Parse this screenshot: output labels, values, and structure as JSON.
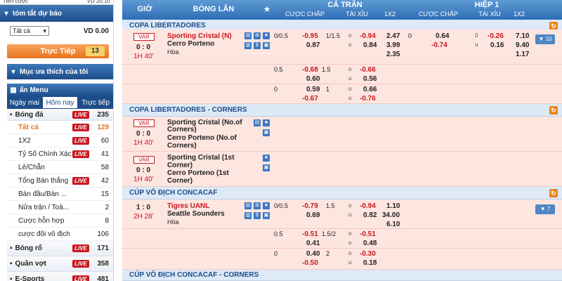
{
  "left": {
    "topline": {
      "label": "Tiền cược",
      "value": "VD 20.10"
    },
    "summary_title": "tóm tắt dự báo",
    "filter_value": "Tất cả",
    "balance": "VD 0.00",
    "live_button": "Trực Tiếp",
    "live_count": "13",
    "favorites": "Mục ưa thích của tôi",
    "hide_menu": "ẩn Menu",
    "tabs": [
      "Ngày mai",
      "Hôm nay",
      "Trực tiếp"
    ],
    "sports": [
      {
        "name": "Bóng đá",
        "live": "LIVE",
        "count": "235"
      },
      {
        "name": "Bóng rổ",
        "live": "LIVE",
        "count": "171"
      },
      {
        "name": "Quần vợt",
        "live": "LIVE",
        "count": "358"
      },
      {
        "name": "E-Sports",
        "live": "LIVE",
        "count": "481"
      }
    ],
    "subs": [
      {
        "name": "Tất cả",
        "live": "LIVE",
        "count": "129"
      },
      {
        "name": "1X2",
        "live": "LIVE",
        "count": "60"
      },
      {
        "name": "Tỷ Số Chính Xác",
        "live": "LIVE",
        "count": "41"
      },
      {
        "name": "Lẻ/Chẵn",
        "live": "",
        "count": "58"
      },
      {
        "name": "Tổng Bàn thắng",
        "live": "LIVE",
        "count": "42"
      },
      {
        "name": "Bàn đầu/Bàn ...",
        "live": "",
        "count": "15"
      },
      {
        "name": "Nửa trận / Toà...",
        "live": "",
        "count": "2"
      },
      {
        "name": "Cược hỗn hợp",
        "live": "",
        "count": "8"
      },
      {
        "name": "cược đôi vô địch",
        "live": "",
        "count": "106"
      }
    ]
  },
  "header": {
    "time": "GIỜ",
    "match": "BÓNG LĂN",
    "full": "CẢ TRẬN",
    "half": "HIỆP 1",
    "handicap": "CƯỢC CHẤP",
    "ou": "TÀI XỈU",
    "x12": "1X2"
  },
  "leagues": [
    "COPA LIBERTADORES",
    "COPA LIBERTADORES - CORNERS",
    "CÚP VÔ ĐỊCH CONCACAF",
    "CÚP VÔ ĐỊCH CONCACAF - CORNERS"
  ],
  "m1": {
    "var": "VAR",
    "score": "0 : 0",
    "time": "1H 40'",
    "home": "Sporting Cristal (N)",
    "away": "Cerro Porteno",
    "draw": "Hòa",
    "more": "▼ 10",
    "r1": {
      "hdp": "0/0.5",
      "h1": "-0.95",
      "h2": "0.87",
      "ou": "1/1.5",
      "o": "o",
      "u": "u",
      "o1": "-0.94",
      "o2": "0.84",
      "x1": "2.47",
      "x2": "3.99",
      "x3": "2.35",
      "hhdp": "0",
      "hh1": "0.64",
      "hh2": "-0.74",
      "hou": "0",
      "hou2": "u",
      "ho1": "-0.26",
      "ho2": "0.16",
      "hx1": "7.10",
      "hx2": "9.40",
      "hx3": "1.17"
    },
    "r2": {
      "hdp": "0.5",
      "h1": "-0.68",
      "h2": "0.60",
      "ou": "1.5",
      "o": "o",
      "u": "u",
      "o1": "-0.66",
      "o2": "0.56"
    },
    "r3": {
      "hdp": "0",
      "h1": "0.59",
      "h2": "-0.67",
      "ou": "1",
      "o": "o",
      "u": "u",
      "o1": "0.66",
      "o2": "-0.76"
    }
  },
  "m2": {
    "var": "VAR",
    "score": "0 : 0",
    "time": "1H 40'",
    "home": "Sporting Cristal (No.of",
    "home2": "Corners)",
    "away": "Cerro Porteno (No.of",
    "away2": "Corners)"
  },
  "m3": {
    "var": "VAR",
    "score": "0 : 0",
    "time": "1H 40'",
    "home": "Sporting Cristal (1st",
    "home2": "Corner)",
    "away": "Cerro Porteno (1st",
    "away2": "Corner)"
  },
  "m4": {
    "score": "1 : 0",
    "time": "2H 28'",
    "home": "Tigres UANL",
    "away": "Seattle Sounders",
    "draw": "Hòa",
    "more": "▼ 7",
    "r1": {
      "hdp": "0/0.5",
      "h1": "-0.79",
      "h2": "0.69",
      "ou": "1.5",
      "o": "o",
      "u": "u",
      "o1": "-0.94",
      "o2": "0.82",
      "x1": "1.10",
      "x2": "34.00",
      "x3": "6.10"
    },
    "r2": {
      "hdp": "0.5",
      "h1": "-0.51",
      "h2": "0.41",
      "ou": "1.5/2",
      "o": "o",
      "u": "u",
      "o1": "-0.51",
      "o2": "0.48"
    },
    "r3": {
      "hdp": "0",
      "h1": "0.40",
      "h2": "-0.50",
      "ou": "2",
      "o": "o",
      "u": "u",
      "o1": "-0.30",
      "o2": "0.18"
    }
  }
}
